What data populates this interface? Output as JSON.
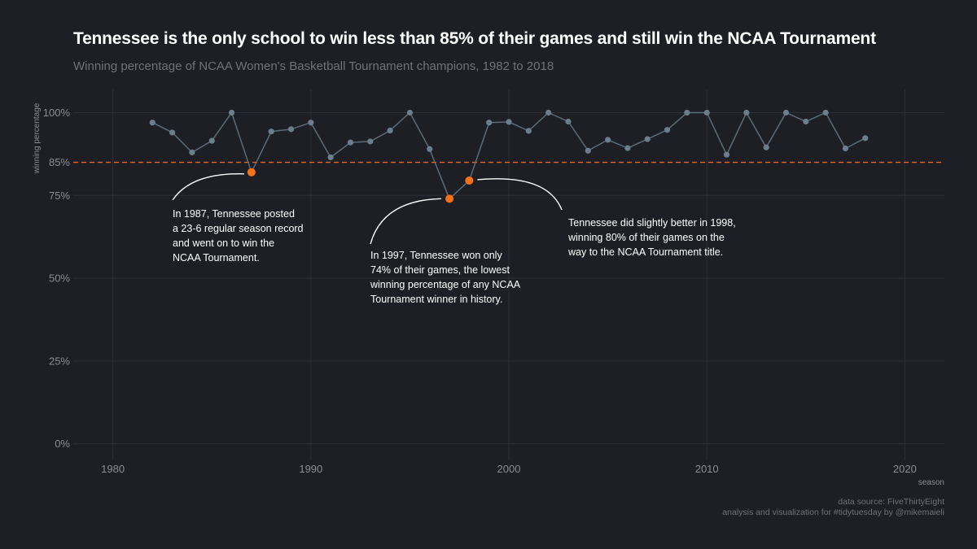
{
  "title": "Tennessee is the only school to win less than 85% of their games and still win the NCAA Tournament",
  "subtitle": "Winning percentage of NCAA Women's Basketball Tournament champions, 1982 to 2018",
  "caption": {
    "line1": "data source: FiveThirtyEight",
    "line2": "analysis and visualization for #tidytuesday by @mikemaieli"
  },
  "colors": {
    "background": "#1e1f24",
    "grid": "#2c2e35",
    "line": "#5b6b78",
    "point": "#6c7d8c",
    "highlight": "#f5721b",
    "reference": "#e8661f",
    "axis_text": "#8a8d94",
    "annotation": "#ffffff"
  },
  "chart_data": {
    "type": "line",
    "xlabel": "season",
    "ylabel": "winning percentage",
    "xlim": [
      1978,
      2022
    ],
    "ylim": [
      -5,
      107
    ],
    "x_ticks": [
      1980,
      1990,
      2000,
      2010,
      2020
    ],
    "x_tick_labels": [
      "1980",
      "1990",
      "2000",
      "2010",
      "2020"
    ],
    "y_ticks": [
      0,
      25,
      50,
      75,
      85,
      100
    ],
    "y_tick_labels": [
      "0%",
      "25%",
      "50%",
      "75%",
      "85%",
      "100%"
    ],
    "reference_line": {
      "y": 85,
      "style": "dashed"
    },
    "series": [
      {
        "name": "champion winning percentage",
        "x": [
          1982,
          1983,
          1984,
          1985,
          1986,
          1987,
          1988,
          1989,
          1990,
          1991,
          1992,
          1993,
          1994,
          1995,
          1996,
          1997,
          1998,
          1999,
          2000,
          2001,
          2002,
          2003,
          2004,
          2005,
          2006,
          2007,
          2008,
          2009,
          2010,
          2011,
          2012,
          2013,
          2014,
          2015,
          2016,
          2017,
          2018
        ],
        "values": [
          97,
          94,
          88,
          91.5,
          100,
          82,
          94.3,
          95,
          97,
          86.5,
          91,
          91.3,
          94.6,
          100,
          89,
          74,
          79.5,
          97,
          97.2,
          94.5,
          100,
          97.3,
          88.5,
          91.8,
          89.3,
          92,
          94.8,
          100,
          100,
          87.3,
          100,
          89.5,
          100,
          97.3,
          100,
          89.2,
          92.3
        ]
      }
    ],
    "highlighted_points": [
      {
        "x": 1987,
        "y": 82
      },
      {
        "x": 1997,
        "y": 74
      },
      {
        "x": 1998,
        "y": 79.5
      }
    ],
    "annotations": [
      {
        "target_year": 1987,
        "lines": [
          "In 1987, Tennessee posted",
          "a 23-6 regular season record",
          "and went on to win the",
          "NCAA Tournament."
        ]
      },
      {
        "target_year": 1997,
        "lines": [
          "In 1997, Tennessee won only",
          "74% of their games, the lowest",
          "winning percentage of any NCAA",
          "Tournament winner in history."
        ]
      },
      {
        "target_year": 1998,
        "lines": [
          "Tennessee did slightly better in 1998,",
          "winning 80% of their games on the",
          "way to the NCAA Tournament title."
        ]
      }
    ]
  }
}
